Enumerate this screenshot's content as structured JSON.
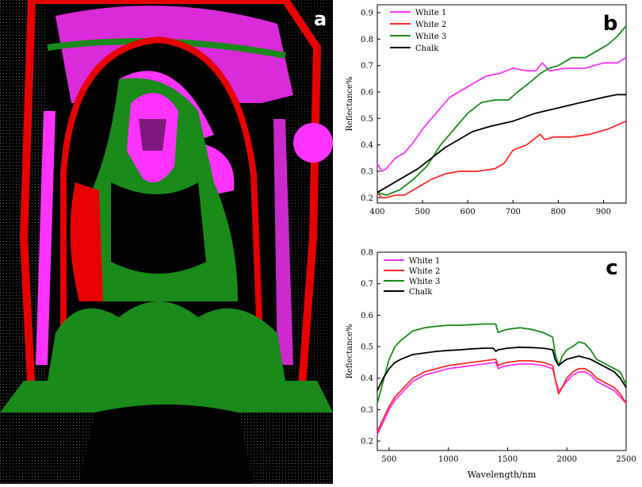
{
  "panel_a": {
    "letter": "a"
  },
  "chart_data": [
    {
      "type": "line",
      "panel_label": "b",
      "title": "",
      "xlabel": "",
      "ylabel": "Reflectance%",
      "xlim": [
        400,
        950
      ],
      "ylim": [
        0.18,
        0.93
      ],
      "xticks": [
        400,
        500,
        600,
        700,
        800,
        900
      ],
      "yticks": [
        0.2,
        0.3,
        0.4,
        0.5,
        0.6,
        0.7,
        0.8,
        0.9
      ],
      "legend": "top-left",
      "grid": false,
      "series": [
        {
          "name": "White 1",
          "color": "#ff33ff",
          "x": [
            400,
            410,
            420,
            440,
            460,
            480,
            500,
            530,
            560,
            600,
            640,
            670,
            700,
            730,
            750,
            765,
            780,
            820,
            860,
            900,
            930,
            950
          ],
          "y": [
            0.33,
            0.3,
            0.31,
            0.35,
            0.37,
            0.41,
            0.46,
            0.52,
            0.58,
            0.62,
            0.66,
            0.67,
            0.69,
            0.68,
            0.68,
            0.71,
            0.68,
            0.69,
            0.69,
            0.71,
            0.71,
            0.73
          ]
        },
        {
          "name": "White 2",
          "color": "#ff2a2a",
          "x": [
            400,
            410,
            420,
            440,
            460,
            480,
            500,
            520,
            550,
            580,
            620,
            660,
            680,
            700,
            730,
            760,
            770,
            790,
            830,
            870,
            910,
            950
          ],
          "y": [
            0.22,
            0.2,
            0.2,
            0.21,
            0.21,
            0.23,
            0.25,
            0.27,
            0.29,
            0.3,
            0.3,
            0.31,
            0.33,
            0.38,
            0.4,
            0.44,
            0.42,
            0.43,
            0.43,
            0.44,
            0.46,
            0.49
          ]
        },
        {
          "name": "White 3",
          "color": "#1a8a1a",
          "x": [
            400,
            420,
            450,
            480,
            510,
            540,
            570,
            600,
            630,
            660,
            690,
            710,
            740,
            760,
            780,
            800,
            830,
            860,
            890,
            910,
            930,
            950
          ],
          "y": [
            0.22,
            0.21,
            0.23,
            0.27,
            0.32,
            0.4,
            0.46,
            0.52,
            0.56,
            0.57,
            0.57,
            0.6,
            0.64,
            0.67,
            0.69,
            0.7,
            0.73,
            0.73,
            0.76,
            0.78,
            0.81,
            0.85
          ]
        },
        {
          "name": "Chalk",
          "color": "#000000",
          "x": [
            400,
            430,
            460,
            490,
            520,
            550,
            580,
            610,
            650,
            700,
            750,
            800,
            850,
            900,
            930,
            950
          ],
          "y": [
            0.22,
            0.25,
            0.28,
            0.31,
            0.35,
            0.39,
            0.42,
            0.45,
            0.47,
            0.49,
            0.52,
            0.54,
            0.56,
            0.58,
            0.59,
            0.59
          ]
        }
      ]
    },
    {
      "type": "line",
      "panel_label": "c",
      "title": "",
      "xlabel": "Wavelength/nm",
      "ylabel": "Reflectance%",
      "xlim": [
        400,
        2500
      ],
      "ylim": [
        0.17,
        0.8
      ],
      "xticks": [
        500,
        1000,
        1500,
        2000,
        2500
      ],
      "yticks": [
        0.2,
        0.3,
        0.4,
        0.5,
        0.6,
        0.7,
        0.8
      ],
      "legend": "top-left",
      "grid": false,
      "series": [
        {
          "name": "White 1",
          "color": "#ff33ff",
          "x": [
            400,
            450,
            500,
            550,
            600,
            700,
            800,
            900,
            1000,
            1100,
            1200,
            1300,
            1400,
            1420,
            1450,
            1500,
            1600,
            1700,
            1800,
            1880,
            1900,
            1930,
            1960,
            2000,
            2050,
            2100,
            2150,
            2200,
            2250,
            2300,
            2350,
            2400,
            2450,
            2500
          ],
          "y": [
            0.22,
            0.26,
            0.3,
            0.33,
            0.35,
            0.39,
            0.41,
            0.42,
            0.43,
            0.435,
            0.44,
            0.445,
            0.45,
            0.43,
            0.435,
            0.44,
            0.445,
            0.445,
            0.44,
            0.43,
            0.4,
            0.36,
            0.37,
            0.39,
            0.41,
            0.42,
            0.42,
            0.41,
            0.39,
            0.38,
            0.37,
            0.36,
            0.34,
            0.32
          ]
        },
        {
          "name": "White 2",
          "color": "#ff2a2a",
          "x": [
            400,
            450,
            500,
            550,
            600,
            700,
            800,
            900,
            1000,
            1100,
            1200,
            1300,
            1400,
            1420,
            1450,
            1500,
            1600,
            1700,
            1800,
            1880,
            1900,
            1930,
            1960,
            2000,
            2050,
            2100,
            2150,
            2200,
            2250,
            2300,
            2350,
            2400,
            2450,
            2500
          ],
          "y": [
            0.23,
            0.27,
            0.31,
            0.34,
            0.36,
            0.4,
            0.42,
            0.43,
            0.44,
            0.445,
            0.45,
            0.455,
            0.46,
            0.44,
            0.445,
            0.45,
            0.455,
            0.455,
            0.45,
            0.44,
            0.4,
            0.35,
            0.37,
            0.4,
            0.42,
            0.43,
            0.43,
            0.42,
            0.4,
            0.39,
            0.38,
            0.37,
            0.35,
            0.32
          ]
        },
        {
          "name": "White 3",
          "color": "#1a8a1a",
          "x": [
            400,
            450,
            500,
            550,
            600,
            700,
            800,
            900,
            1000,
            1100,
            1200,
            1300,
            1400,
            1420,
            1450,
            1500,
            1600,
            1700,
            1800,
            1880,
            1900,
            1930,
            1960,
            2000,
            2050,
            2100,
            2150,
            2200,
            2250,
            2300,
            2350,
            2400,
            2450,
            2500
          ],
          "y": [
            0.32,
            0.39,
            0.46,
            0.5,
            0.52,
            0.55,
            0.56,
            0.565,
            0.568,
            0.568,
            0.57,
            0.572,
            0.572,
            0.545,
            0.55,
            0.555,
            0.56,
            0.555,
            0.545,
            0.53,
            0.48,
            0.44,
            0.47,
            0.49,
            0.5,
            0.515,
            0.51,
            0.49,
            0.46,
            0.45,
            0.44,
            0.43,
            0.42,
            0.38
          ]
        },
        {
          "name": "Chalk",
          "color": "#000000",
          "x": [
            400,
            450,
            500,
            550,
            600,
            700,
            800,
            900,
            1000,
            1100,
            1200,
            1300,
            1380,
            1400,
            1420,
            1450,
            1500,
            1600,
            1700,
            1800,
            1880,
            1900,
            1930,
            1960,
            2000,
            2050,
            2100,
            2150,
            2200,
            2250,
            2300,
            2350,
            2400,
            2450,
            2500
          ],
          "y": [
            0.36,
            0.4,
            0.43,
            0.45,
            0.46,
            0.475,
            0.48,
            0.485,
            0.488,
            0.49,
            0.493,
            0.495,
            0.495,
            0.485,
            0.49,
            0.492,
            0.495,
            0.498,
            0.497,
            0.495,
            0.49,
            0.46,
            0.44,
            0.45,
            0.46,
            0.465,
            0.47,
            0.465,
            0.46,
            0.45,
            0.44,
            0.43,
            0.42,
            0.4,
            0.37
          ]
        }
      ]
    }
  ]
}
